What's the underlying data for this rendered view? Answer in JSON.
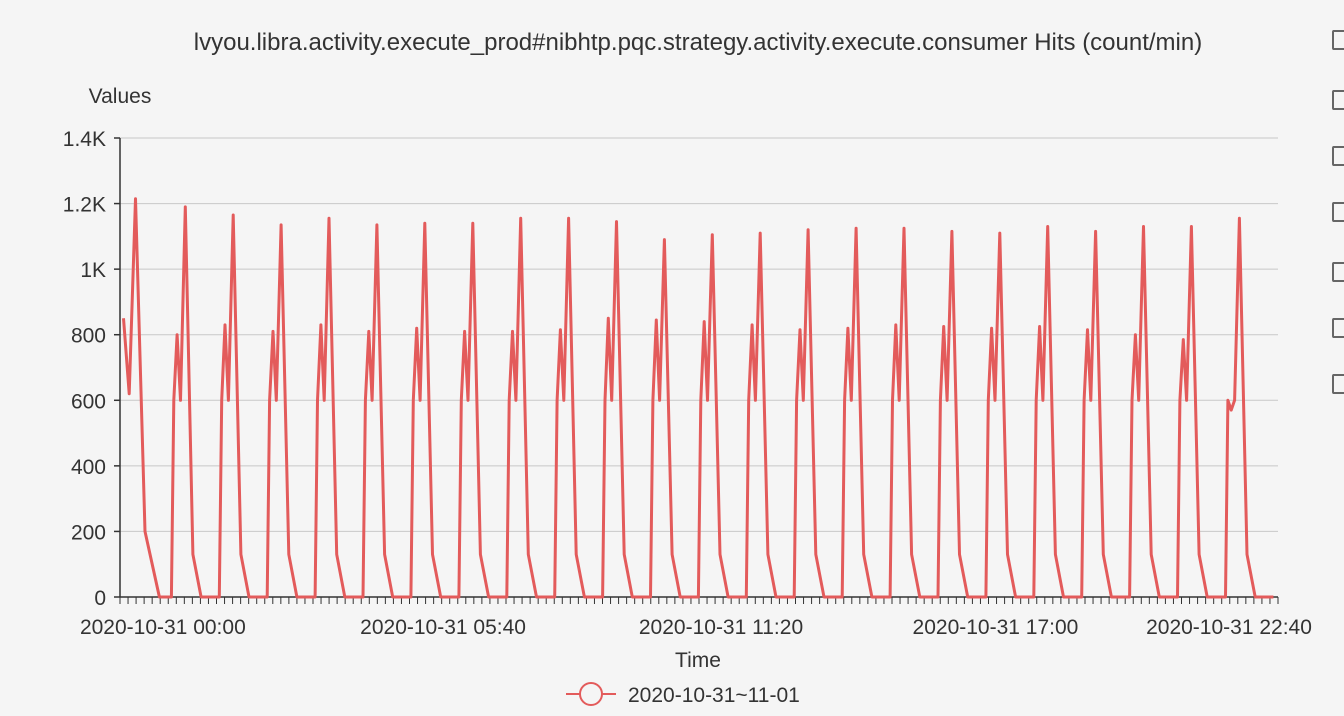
{
  "chart_data": {
    "type": "line",
    "title": "lvyou.libra.activity.execute_prod#nibhtp.pqc.strategy.activity.execute.consumer Hits (count/min)",
    "ylabel": "Values",
    "xlabel": "Time",
    "ylim": [
      0,
      1400
    ],
    "y_ticks": [
      {
        "value": 0,
        "label": "0"
      },
      {
        "value": 200,
        "label": "200"
      },
      {
        "value": 400,
        "label": "400"
      },
      {
        "value": 600,
        "label": "600"
      },
      {
        "value": 800,
        "label": "800"
      },
      {
        "value": 1000,
        "label": "1K"
      },
      {
        "value": 1200,
        "label": "1.2K"
      },
      {
        "value": 1400,
        "label": "1.4K"
      }
    ],
    "x_tick_labels": [
      "2020-10-31 00:00",
      "2020-10-31 05:40",
      "2020-10-31 11:20",
      "2020-10-31 17:00",
      "2020-10-31 22:40"
    ],
    "grid": true,
    "legend_position": "bottom-center",
    "series": [
      {
        "name": "2020-10-31~11-01",
        "color": "#e35b5b",
        "cycle_peaks": [
          [
            870,
            1215
          ],
          [
            800,
            1190
          ],
          [
            830,
            1165
          ],
          [
            810,
            1135
          ],
          [
            830,
            1155
          ],
          [
            810,
            1135
          ],
          [
            820,
            1140
          ],
          [
            810,
            1140
          ],
          [
            810,
            1155
          ],
          [
            815,
            1155
          ],
          [
            850,
            1145
          ],
          [
            845,
            1090
          ],
          [
            840,
            1105
          ],
          [
            830,
            1110
          ],
          [
            815,
            1120
          ],
          [
            820,
            1125
          ],
          [
            830,
            1125
          ],
          [
            825,
            1115
          ],
          [
            820,
            1110
          ],
          [
            825,
            1130
          ],
          [
            815,
            1115
          ],
          [
            800,
            1130
          ],
          [
            785,
            1130
          ],
          [
            570,
            1155
          ]
        ]
      }
    ]
  },
  "toolbox": {
    "icons": [
      "zoom-icon",
      "zoom-reset-icon",
      "data-view-icon",
      "line-switch-icon",
      "bar-switch-icon",
      "restore-icon",
      "save-image-icon"
    ]
  }
}
